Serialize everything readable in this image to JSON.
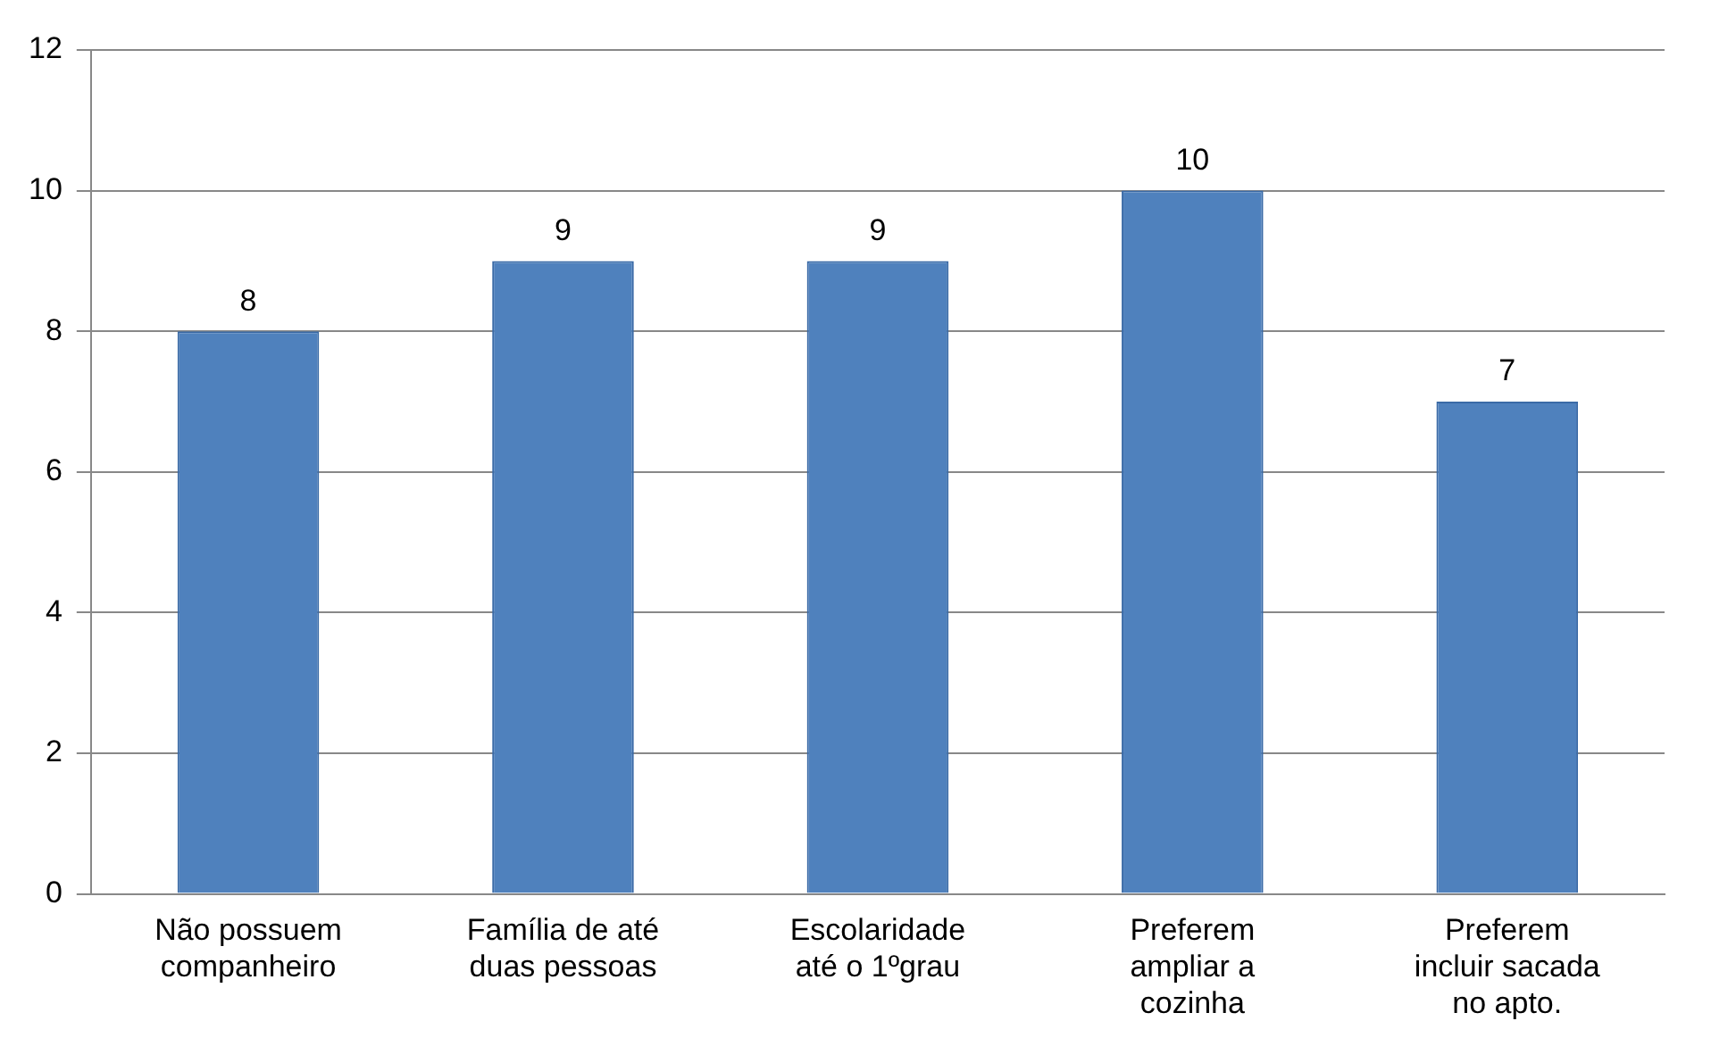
{
  "chart_data": {
    "type": "bar",
    "categories": [
      "Não possuem companheiro",
      "Família de até duas pessoas",
      "Escolaridade até o 1ºgrau",
      "Preferem ampliar a cozinha",
      "Preferem incluir sacada no apto."
    ],
    "values": [
      8,
      9,
      9,
      10,
      7
    ],
    "color": "#4f81bd",
    "ylim": [
      0,
      12
    ],
    "yticks": [
      0,
      2,
      4,
      6,
      8,
      10,
      12
    ],
    "grid": "y",
    "data_labels": true,
    "legend": false
  }
}
